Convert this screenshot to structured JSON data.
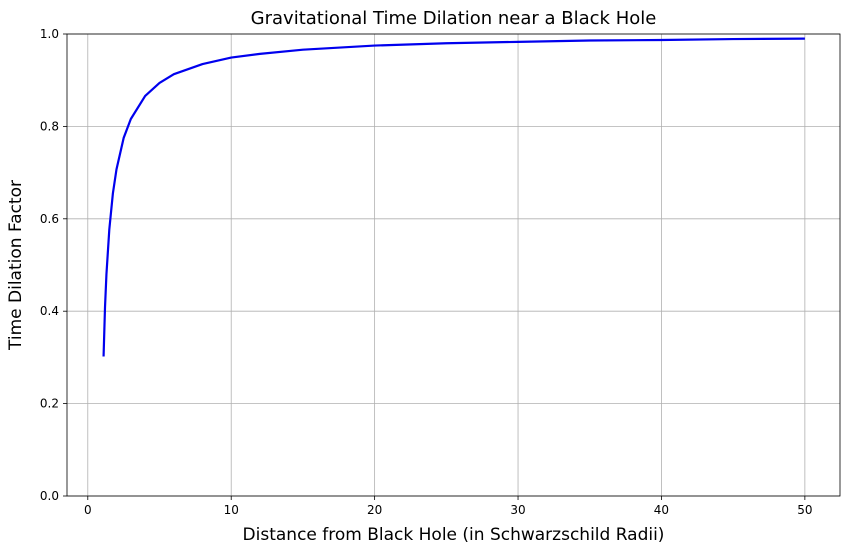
{
  "chart_data": {
    "type": "line",
    "title": "Gravitational Time Dilation near a Black Hole",
    "xlabel": "Distance from Black Hole (in Schwarzschild Radii)",
    "ylabel": "Time Dilation Factor",
    "xlim": [
      -1.45,
      52.45
    ],
    "ylim": [
      0.0,
      1.0
    ],
    "xticks": [
      0,
      10,
      20,
      30,
      40,
      50
    ],
    "yticks": [
      0.0,
      0.2,
      0.4,
      0.6,
      0.8,
      1.0
    ],
    "xtick_labels": [
      "0",
      "10",
      "20",
      "30",
      "40",
      "50"
    ],
    "ytick_labels": [
      "0.0",
      "0.2",
      "0.4",
      "0.6",
      "0.8",
      "1.0"
    ],
    "grid": true,
    "series": [
      {
        "color": "#0000ee",
        "x": [
          1.1,
          1.2,
          1.3,
          1.5,
          1.75,
          2,
          2.5,
          3,
          4,
          5,
          6,
          8,
          10,
          12,
          15,
          20,
          25,
          30,
          35,
          40,
          45,
          50
        ],
        "y": [
          0.302,
          0.408,
          0.48,
          0.577,
          0.655,
          0.707,
          0.775,
          0.816,
          0.866,
          0.894,
          0.913,
          0.935,
          0.949,
          0.957,
          0.966,
          0.975,
          0.98,
          0.983,
          0.986,
          0.987,
          0.989,
          0.99
        ]
      }
    ]
  }
}
